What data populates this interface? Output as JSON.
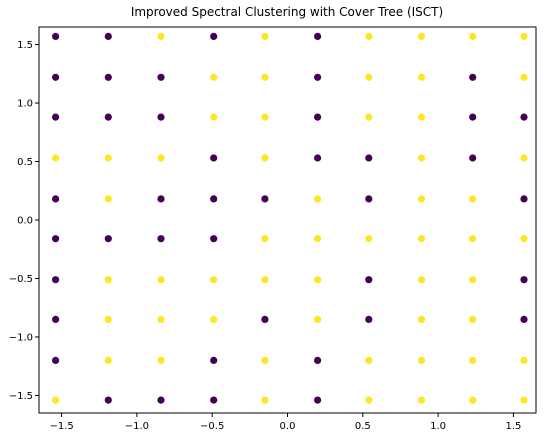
{
  "chart_data": {
    "type": "scatter",
    "title": "Improved Spectral Clustering with Cover Tree (ISCT)",
    "xlabel": "",
    "ylabel": "",
    "xlim": [
      -1.65,
      1.65
    ],
    "ylim": [
      -1.65,
      1.65
    ],
    "xticks": [
      -1.5,
      -1.0,
      -0.5,
      0.0,
      0.5,
      1.0,
      1.5
    ],
    "xtick_labels": [
      "−1.5",
      "−1.0",
      "−0.5",
      "0.0",
      "0.5",
      "1.0",
      "1.5"
    ],
    "yticks": [
      -1.5,
      -1.0,
      -0.5,
      0.0,
      0.5,
      1.0,
      1.5
    ],
    "ytick_labels": [
      "−1.5",
      "−1.0",
      "−0.5",
      "0.0",
      "0.5",
      "1.0",
      "1.5"
    ],
    "grid": false,
    "legend": false,
    "colors": {
      "0": "#440154",
      "1": "#fde725"
    },
    "x_values": [
      -1.54,
      -1.19,
      -0.84,
      -0.49,
      -0.15,
      0.2,
      0.54,
      0.89,
      1.23,
      1.57
    ],
    "y_values": [
      1.57,
      1.22,
      0.88,
      0.53,
      0.18,
      -0.16,
      -0.51,
      -0.85,
      -1.2,
      -1.54
    ],
    "labels_by_row": [
      [
        0,
        0,
        1,
        0,
        1,
        0,
        1,
        1,
        1,
        1
      ],
      [
        0,
        0,
        0,
        1,
        1,
        0,
        1,
        1,
        0,
        1
      ],
      [
        0,
        0,
        0,
        1,
        1,
        0,
        1,
        1,
        0,
        0
      ],
      [
        1,
        1,
        1,
        0,
        1,
        0,
        0,
        1,
        0,
        1
      ],
      [
        0,
        1,
        0,
        0,
        0,
        1,
        0,
        1,
        1,
        0
      ],
      [
        0,
        0,
        0,
        0,
        1,
        1,
        1,
        1,
        1,
        1
      ],
      [
        0,
        1,
        1,
        1,
        1,
        1,
        0,
        1,
        1,
        0
      ],
      [
        0,
        1,
        1,
        1,
        0,
        1,
        0,
        1,
        1,
        0
      ],
      [
        0,
        1,
        1,
        0,
        1,
        0,
        1,
        1,
        1,
        1
      ],
      [
        1,
        0,
        0,
        0,
        1,
        0,
        1,
        1,
        1,
        1
      ]
    ]
  }
}
